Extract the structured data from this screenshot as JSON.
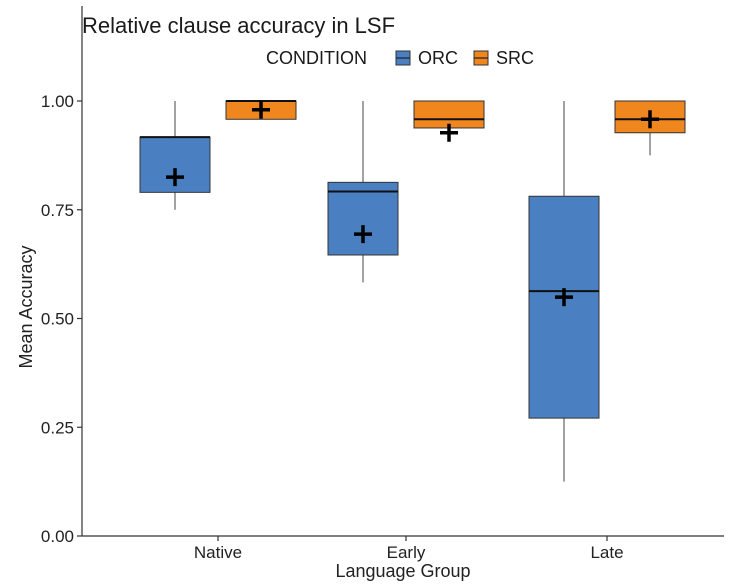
{
  "chart_data": {
    "type": "boxplot",
    "title": "Relative clause accuracy in LSF",
    "xlabel": "Language Group",
    "ylabel": "Mean Accuracy",
    "ylim": [
      0,
      1.05
    ],
    "yticks": [
      "0.00",
      "0.25",
      "0.50",
      "0.75",
      "1.00"
    ],
    "ytick_values": [
      0,
      0.25,
      0.5,
      0.75,
      1.0
    ],
    "categories": [
      "Native",
      "Early",
      "Late"
    ],
    "legend": {
      "title": "CONDITION",
      "position": "top",
      "items": [
        {
          "name": "ORC",
          "color": "#4a7fc1"
        },
        {
          "name": "SRC",
          "color": "#f0871e"
        }
      ]
    },
    "grid": false,
    "mean_marker": "+",
    "series": [
      {
        "name": "ORC",
        "color": "#4a7fc1",
        "boxes": [
          {
            "min": 0.75,
            "q1": 0.79,
            "median": 0.917,
            "q3": 0.917,
            "max": 1.0,
            "mean": 0.825
          },
          {
            "min": 0.583,
            "q1": 0.646,
            "median": 0.792,
            "q3": 0.813,
            "max": 1.0,
            "mean": 0.694
          },
          {
            "min": 0.125,
            "q1": 0.271,
            "median": 0.563,
            "q3": 0.781,
            "max": 1.0,
            "mean": 0.549
          }
        ]
      },
      {
        "name": "SRC",
        "color": "#f0871e",
        "boxes": [
          {
            "min": 0.958,
            "q1": 0.958,
            "median": 1.0,
            "q3": 1.0,
            "max": 1.0,
            "mean": 0.98
          },
          {
            "min": 0.938,
            "q1": 0.938,
            "median": 0.958,
            "q3": 1.0,
            "max": 1.0,
            "mean": 0.927
          },
          {
            "min": 0.875,
            "q1": 0.927,
            "median": 0.958,
            "q3": 1.0,
            "max": 1.0,
            "mean": 0.958
          }
        ]
      }
    ]
  }
}
